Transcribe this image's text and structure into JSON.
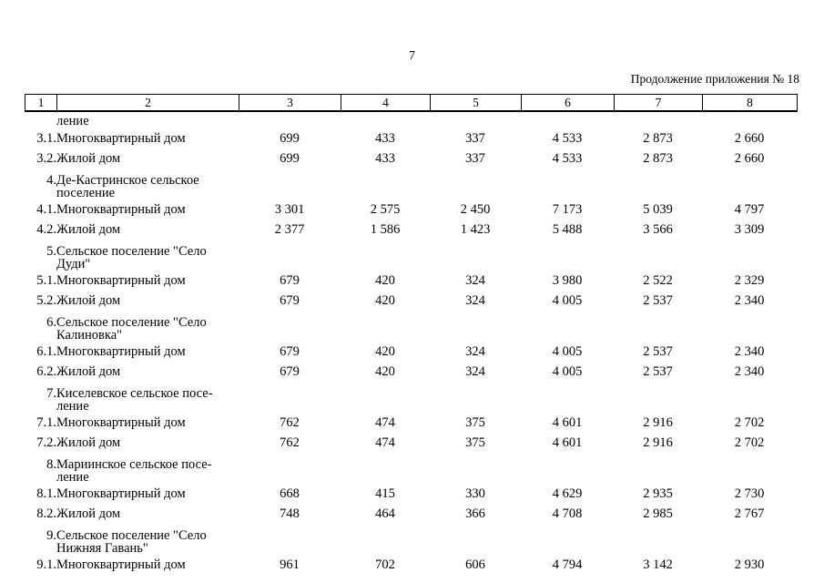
{
  "page": {
    "number": "7",
    "continuation_note": "Продолжение приложения № 18"
  },
  "table": {
    "column_headers": [
      "1",
      "2",
      "3",
      "4",
      "5",
      "6",
      "7",
      "8"
    ],
    "rows": [
      {
        "type": "carryover",
        "num": "",
        "name_lines": [
          "ление"
        ],
        "values": [
          "",
          "",
          "",
          "",
          "",
          ""
        ]
      },
      {
        "type": "item",
        "num": "3.1.",
        "name_lines": [
          "Многоквартирный дом"
        ],
        "values": [
          "699",
          "433",
          "337",
          "4 533",
          "2 873",
          "2 660"
        ]
      },
      {
        "type": "item",
        "num": "3.2.",
        "name_lines": [
          "Жилой дом"
        ],
        "values": [
          "699",
          "433",
          "337",
          "4 533",
          "2 873",
          "2 660"
        ]
      },
      {
        "type": "group",
        "num": "4.",
        "name_lines": [
          "Де-Кастринское сельское",
          "поселение"
        ],
        "values": [
          "",
          "",
          "",
          "",
          "",
          ""
        ]
      },
      {
        "type": "item",
        "num": "4.1.",
        "name_lines": [
          "Многоквартирный дом"
        ],
        "values": [
          "3 301",
          "2 575",
          "2 450",
          "7 173",
          "5 039",
          "4 797"
        ]
      },
      {
        "type": "item",
        "num": "4.2.",
        "name_lines": [
          "Жилой дом"
        ],
        "values": [
          "2 377",
          "1 586",
          "1 423",
          "5 488",
          "3 566",
          "3 309"
        ]
      },
      {
        "type": "group",
        "num": "5.",
        "name_lines": [
          "Сельское поселение \"Село",
          "Дуди\""
        ],
        "values": [
          "",
          "",
          "",
          "",
          "",
          ""
        ]
      },
      {
        "type": "item",
        "num": "5.1.",
        "name_lines": [
          "Многоквартирный дом"
        ],
        "values": [
          "679",
          "420",
          "324",
          "3 980",
          "2 522",
          "2 329"
        ]
      },
      {
        "type": "item",
        "num": "5.2.",
        "name_lines": [
          "Жилой дом"
        ],
        "values": [
          "679",
          "420",
          "324",
          "4 005",
          "2 537",
          "2 340"
        ]
      },
      {
        "type": "group",
        "num": "6.",
        "name_lines": [
          "Сельское поселение \"Село",
          "Калиновка\""
        ],
        "values": [
          "",
          "",
          "",
          "",
          "",
          ""
        ]
      },
      {
        "type": "item",
        "num": "6.1.",
        "name_lines": [
          "Многоквартирный дом"
        ],
        "values": [
          "679",
          "420",
          "324",
          "4 005",
          "2 537",
          "2 340"
        ]
      },
      {
        "type": "item",
        "num": "6.2.",
        "name_lines": [
          "Жилой дом"
        ],
        "values": [
          "679",
          "420",
          "324",
          "4 005",
          "2 537",
          "2 340"
        ]
      },
      {
        "type": "group",
        "num": "7.",
        "name_lines": [
          "Киселевское сельское посе-",
          "ление"
        ],
        "values": [
          "",
          "",
          "",
          "",
          "",
          ""
        ]
      },
      {
        "type": "item",
        "num": "7.1.",
        "name_lines": [
          "Многоквартирный дом"
        ],
        "values": [
          "762",
          "474",
          "375",
          "4 601",
          "2 916",
          "2 702"
        ]
      },
      {
        "type": "item",
        "num": "7.2.",
        "name_lines": [
          "Жилой дом"
        ],
        "values": [
          "762",
          "474",
          "375",
          "4 601",
          "2 916",
          "2 702"
        ]
      },
      {
        "type": "group",
        "num": "8.",
        "name_lines": [
          "Мариинское сельское посе-",
          "ление"
        ],
        "values": [
          "",
          "",
          "",
          "",
          "",
          ""
        ]
      },
      {
        "type": "item",
        "num": "8.1.",
        "name_lines": [
          "Многоквартирный дом"
        ],
        "values": [
          "668",
          "415",
          "330",
          "4 629",
          "2 935",
          "2 730"
        ]
      },
      {
        "type": "item",
        "num": "8.2.",
        "name_lines": [
          "Жилой дом"
        ],
        "values": [
          "748",
          "464",
          "366",
          "4 708",
          "2 985",
          "2 767"
        ]
      },
      {
        "type": "group",
        "num": "9.",
        "name_lines": [
          "Сельское поселение \"Село",
          "Нижняя Гавань\""
        ],
        "values": [
          "",
          "",
          "",
          "",
          "",
          ""
        ]
      },
      {
        "type": "item",
        "num": "9.1.",
        "name_lines": [
          "Многоквартирный дом"
        ],
        "values": [
          "961",
          "702",
          "606",
          "4 794",
          "3 142",
          "2 930"
        ]
      }
    ]
  }
}
